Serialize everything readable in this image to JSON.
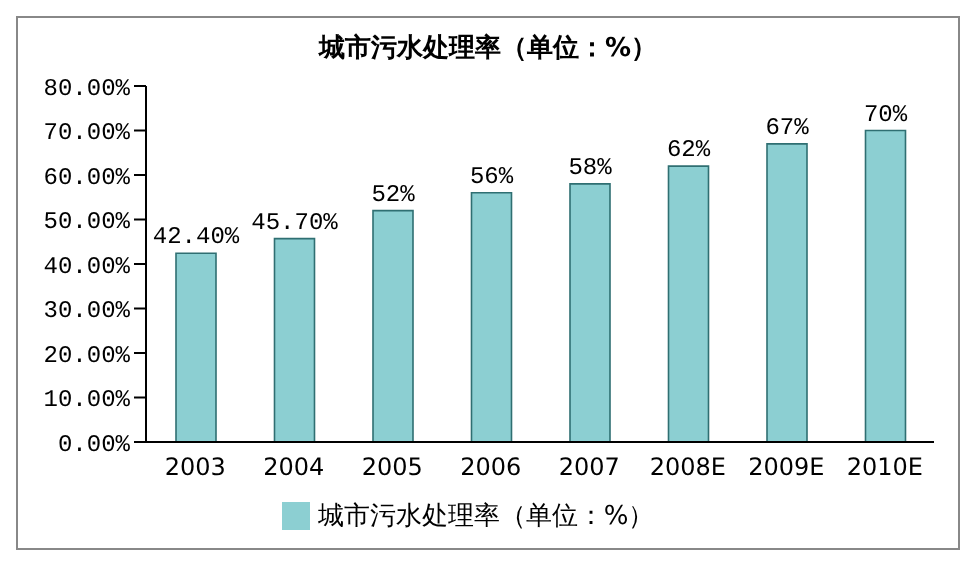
{
  "chart_data": {
    "type": "bar",
    "title": "城市污水处理率（单位：%）",
    "categories": [
      "2003",
      "2004",
      "2005",
      "2006",
      "2007",
      "2008E",
      "2009E",
      "2010E"
    ],
    "series": [
      {
        "name": "城市污水处理率（单位：%）",
        "color": "#8ccfd2",
        "values": [
          42.4,
          45.7,
          52,
          56,
          58,
          62,
          67,
          70
        ],
        "value_labels": [
          "42.40%",
          "45.70%",
          "52%",
          "56%",
          "58%",
          "62%",
          "67%",
          "70%"
        ]
      }
    ],
    "ylim": [
      0,
      80
    ],
    "yticks": [
      {
        "value": 0,
        "label": "0.00%"
      },
      {
        "value": 10,
        "label": "10.00%"
      },
      {
        "value": 20,
        "label": "20.00%"
      },
      {
        "value": 30,
        "label": "30.00%"
      },
      {
        "value": 40,
        "label": "40.00%"
      },
      {
        "value": 50,
        "label": "50.00%"
      },
      {
        "value": 60,
        "label": "60.00%"
      },
      {
        "value": 70,
        "label": "70.00%"
      },
      {
        "value": 80,
        "label": "80.00%"
      }
    ],
    "grid": false,
    "legend": "bottom"
  }
}
